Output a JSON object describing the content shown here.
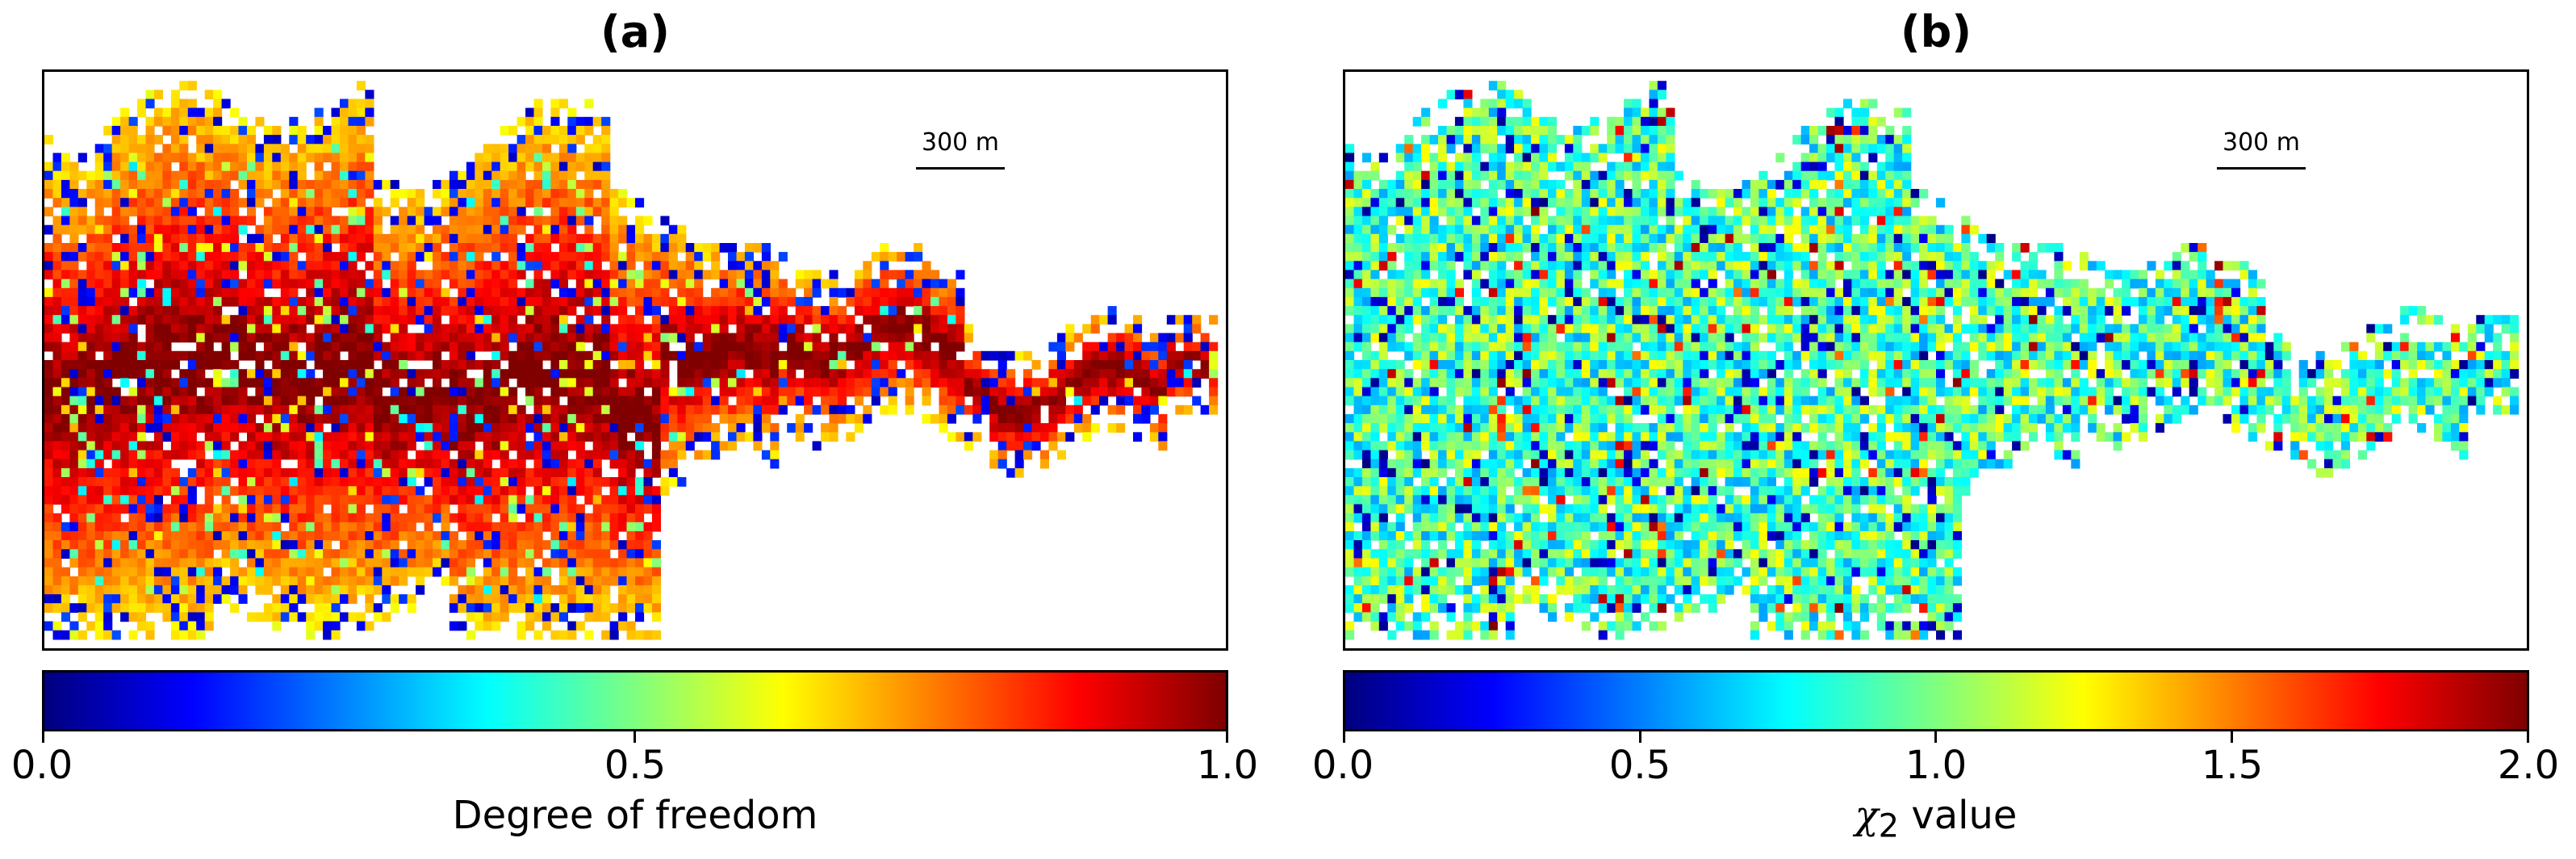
{
  "chart_data": [
    {
      "type": "heatmap",
      "panel_label": "(a)",
      "scale_bar": "300 m",
      "colormap": "jet",
      "colorbar": {
        "label": "Degree of freedom",
        "range": [
          0.0,
          1.0
        ],
        "ticks": [
          0.0,
          0.5,
          1.0
        ],
        "tick_labels": [
          "0.0",
          "0.5",
          "1.0"
        ]
      },
      "description_of_values": "mostly high (0.8-1.0) in the main flow channel, lower (0.0-0.2) scattered near margins"
    },
    {
      "type": "heatmap",
      "panel_label": "(b)",
      "scale_bar": "300 m",
      "colormap": "jet",
      "colorbar": {
        "label_symbol": "χ",
        "label_subscript": "2",
        "label_rest": " value",
        "range": [
          0.0,
          2.0
        ],
        "ticks": [
          0.0,
          0.5,
          1.0,
          1.5,
          2.0
        ],
        "tick_labels": [
          "0.0",
          "0.5",
          "1.0",
          "1.5",
          "2.0"
        ]
      },
      "description_of_values": "mostly 0.5-1.0 with scattered higher and lower values"
    }
  ]
}
